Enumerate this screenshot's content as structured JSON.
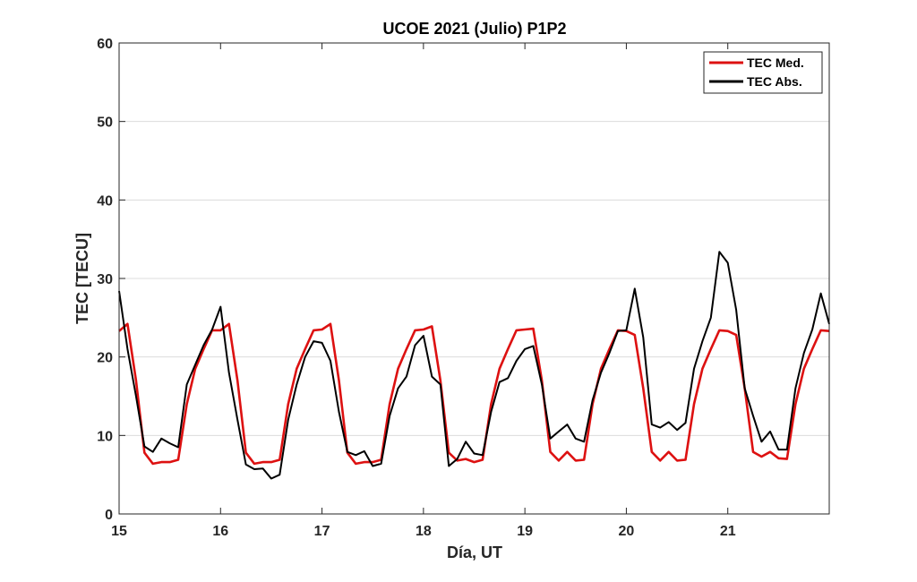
{
  "chart_data": {
    "type": "line",
    "title": "UCOE 2021 (Julio) P1P2",
    "xlabel": "Día, UT",
    "ylabel": "TEC [TECU]",
    "xlim": [
      15,
      22
    ],
    "ylim": [
      0,
      60
    ],
    "x_ticks": [
      15,
      16,
      17,
      18,
      19,
      20,
      21
    ],
    "x_tick_labels": [
      "15",
      "16",
      "17",
      "18",
      "19",
      "20",
      "21"
    ],
    "y_ticks": [
      0,
      10,
      20,
      30,
      40,
      50,
      60
    ],
    "y_tick_labels": [
      "0",
      "10",
      "20",
      "30",
      "40",
      "50",
      "60"
    ],
    "grid": "horizontal",
    "legend_position": "top-right",
    "series": [
      {
        "name": "TEC Med.",
        "color": "#dd1111",
        "points": [
          [
            15.0,
            23.3
          ],
          [
            15.083,
            24.2
          ],
          [
            15.167,
            17.0
          ],
          [
            15.25,
            7.8
          ],
          [
            15.333,
            6.4
          ],
          [
            15.417,
            6.6
          ],
          [
            15.5,
            6.6
          ],
          [
            15.583,
            6.9
          ],
          [
            15.667,
            14.0
          ],
          [
            15.75,
            18.5
          ],
          [
            15.833,
            21.0
          ],
          [
            15.917,
            23.4
          ],
          [
            16.0,
            23.4
          ],
          [
            16.083,
            24.2
          ],
          [
            16.167,
            17.0
          ],
          [
            16.25,
            7.8
          ],
          [
            16.333,
            6.4
          ],
          [
            16.417,
            6.6
          ],
          [
            16.5,
            6.6
          ],
          [
            16.583,
            6.9
          ],
          [
            16.667,
            14.0
          ],
          [
            16.75,
            18.5
          ],
          [
            16.833,
            21.0
          ],
          [
            16.917,
            23.4
          ],
          [
            17.0,
            23.5
          ],
          [
            17.083,
            24.2
          ],
          [
            17.167,
            17.0
          ],
          [
            17.25,
            7.8
          ],
          [
            17.333,
            6.4
          ],
          [
            17.417,
            6.6
          ],
          [
            17.5,
            6.6
          ],
          [
            17.583,
            6.9
          ],
          [
            17.667,
            14.0
          ],
          [
            17.75,
            18.5
          ],
          [
            17.833,
            21.0
          ],
          [
            17.917,
            23.4
          ],
          [
            18.0,
            23.5
          ],
          [
            18.083,
            23.9
          ],
          [
            18.167,
            17.0
          ],
          [
            18.25,
            7.8
          ],
          [
            18.333,
            6.8
          ],
          [
            18.417,
            7.0
          ],
          [
            18.5,
            6.6
          ],
          [
            18.583,
            6.9
          ],
          [
            18.667,
            14.0
          ],
          [
            18.75,
            18.5
          ],
          [
            18.833,
            21.0
          ],
          [
            18.917,
            23.4
          ],
          [
            19.0,
            23.5
          ],
          [
            19.083,
            23.6
          ],
          [
            19.167,
            17.0
          ],
          [
            19.25,
            7.9
          ],
          [
            19.333,
            6.8
          ],
          [
            19.417,
            7.9
          ],
          [
            19.5,
            6.8
          ],
          [
            19.583,
            6.9
          ],
          [
            19.667,
            14.0
          ],
          [
            19.75,
            18.5
          ],
          [
            19.833,
            21.0
          ],
          [
            19.917,
            23.4
          ],
          [
            20.0,
            23.3
          ],
          [
            20.083,
            22.8
          ],
          [
            20.167,
            16.0
          ],
          [
            20.25,
            7.9
          ],
          [
            20.333,
            6.8
          ],
          [
            20.417,
            7.9
          ],
          [
            20.5,
            6.8
          ],
          [
            20.583,
            6.9
          ],
          [
            20.667,
            14.0
          ],
          [
            20.75,
            18.5
          ],
          [
            20.833,
            21.0
          ],
          [
            20.917,
            23.4
          ],
          [
            21.0,
            23.3
          ],
          [
            21.083,
            22.8
          ],
          [
            21.167,
            16.0
          ],
          [
            21.25,
            7.9
          ],
          [
            21.333,
            7.3
          ],
          [
            21.417,
            7.9
          ],
          [
            21.5,
            7.1
          ],
          [
            21.583,
            7.0
          ],
          [
            21.667,
            14.0
          ],
          [
            21.75,
            18.5
          ],
          [
            21.833,
            21.0
          ],
          [
            21.917,
            23.4
          ],
          [
            22.0,
            23.3
          ]
        ]
      },
      {
        "name": "TEC Abs.",
        "color": "#000000",
        "points": [
          [
            15.0,
            28.4
          ],
          [
            15.083,
            21.0
          ],
          [
            15.167,
            15.0
          ],
          [
            15.25,
            8.6
          ],
          [
            15.333,
            7.9
          ],
          [
            15.417,
            9.6
          ],
          [
            15.5,
            9.0
          ],
          [
            15.583,
            8.5
          ],
          [
            15.667,
            16.5
          ],
          [
            15.75,
            19.0
          ],
          [
            15.833,
            21.5
          ],
          [
            15.917,
            23.5
          ],
          [
            16.0,
            26.4
          ],
          [
            16.083,
            18.0
          ],
          [
            16.167,
            12.0
          ],
          [
            16.25,
            6.3
          ],
          [
            16.333,
            5.7
          ],
          [
            16.417,
            5.8
          ],
          [
            16.5,
            4.5
          ],
          [
            16.583,
            5.0
          ],
          [
            16.667,
            12.0
          ],
          [
            16.75,
            16.5
          ],
          [
            16.833,
            20.0
          ],
          [
            16.917,
            22.0
          ],
          [
            17.0,
            21.8
          ],
          [
            17.083,
            19.5
          ],
          [
            17.167,
            13.0
          ],
          [
            17.25,
            7.9
          ],
          [
            17.333,
            7.5
          ],
          [
            17.417,
            8.0
          ],
          [
            17.5,
            6.1
          ],
          [
            17.583,
            6.4
          ],
          [
            17.667,
            12.5
          ],
          [
            17.75,
            16.0
          ],
          [
            17.833,
            17.5
          ],
          [
            17.917,
            21.5
          ],
          [
            18.0,
            22.7
          ],
          [
            18.083,
            17.5
          ],
          [
            18.167,
            16.5
          ],
          [
            18.25,
            6.1
          ],
          [
            18.333,
            7.0
          ],
          [
            18.417,
            9.2
          ],
          [
            18.5,
            7.7
          ],
          [
            18.583,
            7.5
          ],
          [
            18.667,
            13.0
          ],
          [
            18.75,
            16.8
          ],
          [
            18.833,
            17.3
          ],
          [
            18.917,
            19.5
          ],
          [
            19.0,
            21.0
          ],
          [
            19.083,
            21.4
          ],
          [
            19.167,
            16.5
          ],
          [
            19.25,
            9.6
          ],
          [
            19.333,
            10.5
          ],
          [
            19.417,
            11.4
          ],
          [
            19.5,
            9.6
          ],
          [
            19.583,
            9.2
          ],
          [
            19.667,
            14.5
          ],
          [
            19.75,
            18.0
          ],
          [
            19.833,
            20.5
          ],
          [
            19.917,
            23.3
          ],
          [
            20.0,
            23.4
          ],
          [
            20.083,
            28.7
          ],
          [
            20.167,
            22.5
          ],
          [
            20.25,
            11.4
          ],
          [
            20.333,
            11.0
          ],
          [
            20.417,
            11.7
          ],
          [
            20.5,
            10.7
          ],
          [
            20.583,
            11.6
          ],
          [
            20.667,
            18.5
          ],
          [
            20.75,
            22.0
          ],
          [
            20.833,
            25.0
          ],
          [
            20.917,
            33.4
          ],
          [
            21.0,
            32.0
          ],
          [
            21.083,
            26.0
          ],
          [
            21.167,
            16.0
          ],
          [
            21.25,
            12.5
          ],
          [
            21.333,
            9.2
          ],
          [
            21.417,
            10.5
          ],
          [
            21.5,
            8.2
          ],
          [
            21.583,
            8.2
          ],
          [
            21.667,
            16.0
          ],
          [
            21.75,
            20.5
          ],
          [
            21.833,
            23.5
          ],
          [
            21.917,
            28.1
          ],
          [
            22.0,
            24.2
          ]
        ]
      }
    ]
  }
}
